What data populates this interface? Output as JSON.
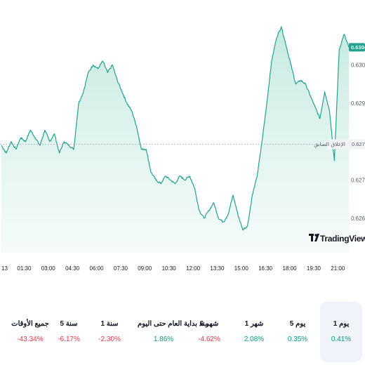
{
  "chart_data": {
    "type": "area",
    "x_ticks": [
      "13",
      "01:30",
      "03:00",
      "04:30",
      "06:00",
      "07:30",
      "09:00",
      "10:30",
      "12:00",
      "13:30",
      "15:00",
      "16:30",
      "18:00",
      "19:30",
      "21:00"
    ],
    "y_ticks": [
      "0.63000",
      "0.62900",
      "0.62700",
      "0.62600"
    ],
    "ylim": [
      0.6251,
      0.6314
    ],
    "series": [
      {
        "x": [
          0,
          0.3,
          0.6,
          0.9,
          1.2,
          1.5,
          1.8,
          2.1,
          2.4,
          2.7,
          3.0,
          3.3,
          3.6,
          3.9,
          4.2,
          4.5,
          4.8,
          5.1,
          5.4,
          5.7,
          6.0,
          6.3,
          6.6,
          6.9,
          7.2,
          7.5,
          7.8,
          8.1,
          8.4,
          8.7,
          9.0,
          9.3,
          9.6,
          9.9,
          10.2,
          10.5,
          10.8,
          11.1,
          11.4,
          11.7,
          12.0,
          12.3,
          12.6,
          12.9,
          13.2,
          13.5,
          13.8,
          14.1,
          14.4,
          14.7,
          15.0,
          15.3,
          15.6,
          15.9,
          16.2,
          16.5,
          16.8,
          17.1,
          17.4,
          17.7,
          18.0,
          18.3,
          18.6,
          18.9,
          19.2,
          19.5,
          19.8,
          20.1,
          20.4,
          20.7,
          21.0,
          21.3,
          21.6
        ],
        "values": [
          0.6279,
          0.6277,
          0.628,
          0.6278,
          0.6281,
          0.628,
          0.6283,
          0.6281,
          0.6279,
          0.6283,
          0.628,
          0.6282,
          0.6277,
          0.628,
          0.6279,
          0.6278,
          0.629,
          0.6293,
          0.6298,
          0.63,
          0.6299,
          0.6301,
          0.6298,
          0.63,
          0.6296,
          0.6293,
          0.629,
          0.6288,
          0.6284,
          0.6278,
          0.6278,
          0.6272,
          0.627,
          0.6269,
          0.6271,
          0.627,
          0.6269,
          0.6271,
          0.627,
          0.6271,
          0.6268,
          0.6262,
          0.626,
          0.6262,
          0.6264,
          0.626,
          0.6259,
          0.6261,
          0.6266,
          0.6261,
          0.6257,
          0.6258,
          0.6266,
          0.6271,
          0.628,
          0.629,
          0.6301,
          0.6307,
          0.631,
          0.6305,
          0.63,
          0.6295,
          0.6296,
          0.6295,
          0.6292,
          0.6289,
          0.6286,
          0.6293,
          0.6288,
          0.6275,
          0.6304,
          0.6308,
          0.63046
        ]
      }
    ],
    "current_price": "0.63046",
    "prev_close_label": "الإغلاق السابق",
    "prev_close_value": "0.62793",
    "prev_close": 0.62793,
    "watermark": "TradingView",
    "line_color": "#22a28f",
    "fill_color": "#d2efe8",
    "grid": false
  },
  "performance": [
    {
      "label": "جميع الأوقات",
      "value": "-43.34%",
      "trend": "negative"
    },
    {
      "label": "5 سنة",
      "value": "-6.17%",
      "trend": "negative"
    },
    {
      "label": "1 سنة",
      "value": "-2.30%",
      "trend": "negative"
    },
    {
      "label": "منذ بداية العام حتى اليوم",
      "value": "1.86%",
      "trend": "positive"
    },
    {
      "label": "6 شهر",
      "value": "-4.62%",
      "trend": "negative"
    },
    {
      "label": "1 شهر",
      "value": "2.08%",
      "trend": "positive"
    },
    {
      "label": "5 يوم",
      "value": "0.35%",
      "trend": "positive"
    },
    {
      "label": "1 يوم",
      "value": "0.41%",
      "trend": "positive",
      "selected": true
    }
  ],
  "colors": {
    "positive": "#089981",
    "negative": "#f23645",
    "accent": "#22a28f"
  }
}
